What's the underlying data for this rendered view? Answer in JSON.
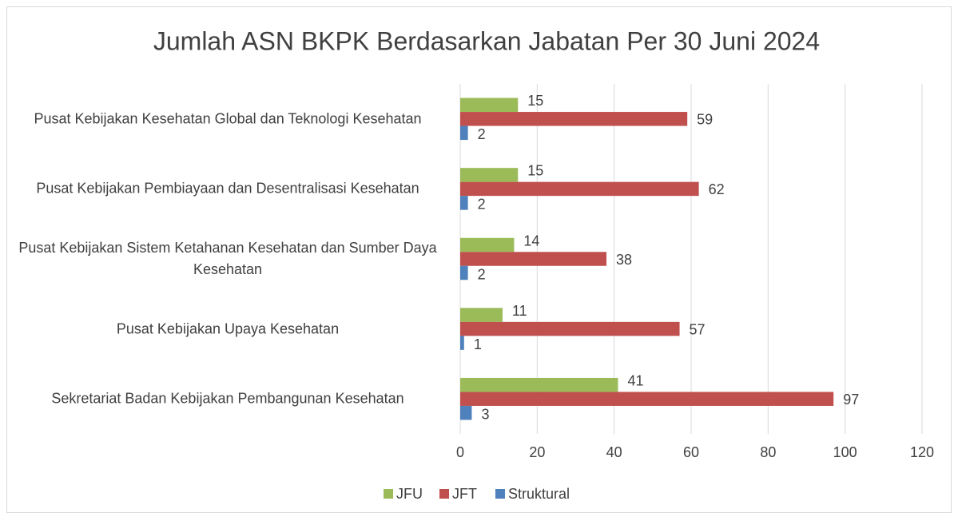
{
  "chart_data": {
    "type": "bar",
    "orientation": "horizontal",
    "title": "Jumlah ASN BKPK Berdasarkan Jabatan Per 30 Juni 2024",
    "categories": [
      "Pusat Kebijakan Kesehatan Global dan Teknologi Kesehatan",
      "Pusat Kebijakan Pembiayaan dan Desentralisasi Kesehatan",
      "Pusat Kebijakan Sistem Ketahanan Kesehatan dan Sumber Daya Kesehatan",
      "Pusat Kebijakan Upaya Kesehatan",
      "Sekretariat Badan Kebijakan Pembangunan Kesehatan"
    ],
    "series": [
      {
        "name": "JFU",
        "color": "#9bbb59",
        "values": [
          15,
          15,
          14,
          11,
          41
        ]
      },
      {
        "name": "JFT",
        "color": "#c0504d",
        "values": [
          59,
          62,
          38,
          57,
          97
        ]
      },
      {
        "name": "Struktural",
        "color": "#4f81bd",
        "values": [
          2,
          2,
          2,
          1,
          3
        ]
      }
    ],
    "xlim": [
      0,
      120
    ],
    "xticks": [
      0,
      20,
      40,
      60,
      80,
      100,
      120
    ],
    "grid": true,
    "legend": "bottom"
  }
}
